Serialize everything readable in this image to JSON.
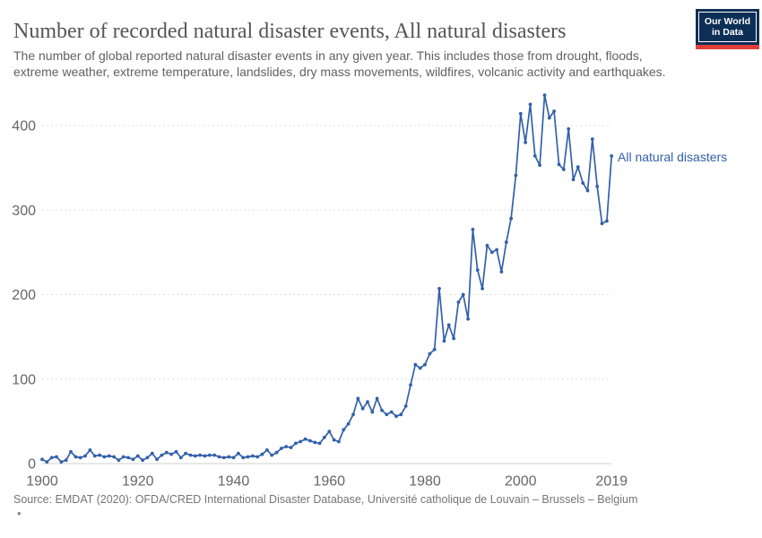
{
  "header": {
    "title": "Number of recorded natural disaster events, All natural disasters",
    "subtitle": "The number of global reported natural disaster events in any given year. This includes those from drought, floods, extreme weather, extreme temperature, landslides, dry mass movements, wildfires, volcanic activity and earthquakes."
  },
  "logo": {
    "line1": "Our World",
    "line2": "in Data"
  },
  "chart_data": {
    "type": "line",
    "title": "Number of recorded natural disaster events, All natural disasters",
    "xlabel": "",
    "ylabel": "",
    "xlim": [
      1900,
      2019
    ],
    "ylim": [
      0,
      440
    ],
    "xticks": [
      1900,
      1920,
      1940,
      1960,
      1980,
      2000,
      2019
    ],
    "yticks": [
      0,
      100,
      200,
      300,
      400
    ],
    "grid": "horizontal-dashed",
    "legend_position": "end-of-line",
    "series": [
      {
        "name": "All natural disasters",
        "color": "#3360a9",
        "x": [
          1900,
          1901,
          1902,
          1903,
          1904,
          1905,
          1906,
          1907,
          1908,
          1909,
          1910,
          1911,
          1912,
          1913,
          1914,
          1915,
          1916,
          1917,
          1918,
          1919,
          1920,
          1921,
          1922,
          1923,
          1924,
          1925,
          1926,
          1927,
          1928,
          1929,
          1930,
          1931,
          1932,
          1933,
          1934,
          1935,
          1936,
          1937,
          1938,
          1939,
          1940,
          1941,
          1942,
          1943,
          1944,
          1945,
          1946,
          1947,
          1948,
          1949,
          1950,
          1951,
          1952,
          1953,
          1954,
          1955,
          1956,
          1957,
          1958,
          1959,
          1960,
          1961,
          1962,
          1963,
          1964,
          1965,
          1966,
          1967,
          1968,
          1969,
          1970,
          1971,
          1972,
          1973,
          1974,
          1975,
          1976,
          1977,
          1978,
          1979,
          1980,
          1981,
          1982,
          1983,
          1984,
          1985,
          1986,
          1987,
          1988,
          1989,
          1990,
          1991,
          1992,
          1993,
          1994,
          1995,
          1996,
          1997,
          1998,
          1999,
          2000,
          2001,
          2002,
          2003,
          2004,
          2005,
          2006,
          2007,
          2008,
          2009,
          2010,
          2011,
          2012,
          2013,
          2014,
          2015,
          2016,
          2017,
          2018,
          2019
        ],
        "values": [
          5,
          2,
          7,
          8,
          2,
          4,
          14,
          8,
          7,
          9,
          16,
          9,
          10,
          8,
          9,
          8,
          4,
          8,
          7,
          5,
          9,
          4,
          7,
          12,
          5,
          10,
          13,
          11,
          14,
          7,
          12,
          10,
          9,
          10,
          9,
          10,
          10,
          8,
          7,
          8,
          7,
          12,
          7,
          8,
          9,
          8,
          11,
          16,
          10,
          13,
          18,
          20,
          19,
          24,
          26,
          29,
          27,
          25,
          24,
          31,
          38,
          28,
          26,
          40,
          47,
          58,
          77,
          65,
          73,
          61,
          77,
          63,
          58,
          61,
          56,
          58,
          68,
          93,
          117,
          113,
          117,
          130,
          135,
          207,
          145,
          164,
          148,
          191,
          200,
          171,
          277,
          229,
          207,
          258,
          250,
          253,
          227,
          262,
          290,
          341,
          414,
          380,
          425,
          364,
          353,
          436,
          409,
          417,
          354,
          348,
          396,
          336,
          351,
          332,
          323,
          384,
          328,
          284,
          287,
          364
        ]
      }
    ]
  },
  "footer": {
    "source": "Source: EMDAT (2020): OFDA/CRED International Disaster Database, Université catholique de Louvain – Brussels – Belgium",
    "bullet": "•"
  },
  "colors": {
    "line": "#3360a9",
    "grid": "#dedede",
    "axis": "#cfcfcf",
    "tick_text": "#666666",
    "title_text": "#555555",
    "logo_bg": "#0d2e55",
    "logo_accent": "#e0403a"
  }
}
